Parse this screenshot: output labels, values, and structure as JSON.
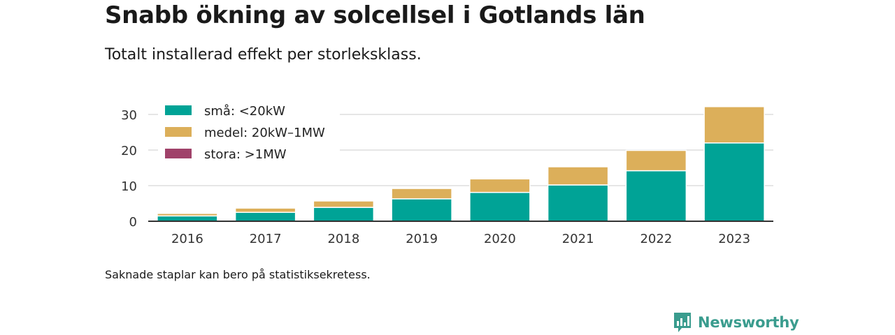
{
  "header": {
    "title": "Snabb ökning av solcellsel i Gotlands län",
    "subtitle": "Totalt installerad effekt per storleksklass."
  },
  "footnote": "Saknade staplar kan bero på statistiksekretess.",
  "brand": {
    "name": "Newsworthy",
    "logo_icon": "bar-chart-speech-bubble-icon",
    "color": "#3a9c8e"
  },
  "chart_data": {
    "type": "bar",
    "stacked": true,
    "categories": [
      "2016",
      "2017",
      "2018",
      "2019",
      "2020",
      "2021",
      "2022",
      "2023"
    ],
    "series": [
      {
        "name": "små: <20kW",
        "color": "#00a396",
        "values": [
          1.5,
          2.5,
          3.9,
          6.3,
          8.1,
          10.2,
          14.2,
          22.0
        ]
      },
      {
        "name": "medel: 20kW–1MW",
        "color": "#dcaf5a",
        "values": [
          0.7,
          1.2,
          1.8,
          2.9,
          3.8,
          5.1,
          5.7,
          10.2
        ]
      },
      {
        "name": "stora: >1MW",
        "color": "#a0426a",
        "values": [
          0,
          0,
          0,
          0,
          0,
          0,
          0,
          0
        ]
      }
    ],
    "yticks": [
      0,
      10,
      20,
      30
    ],
    "ylim": [
      0,
      34
    ],
    "xlabel": "",
    "ylabel": "",
    "grid": true,
    "legend_position": "top-left"
  }
}
